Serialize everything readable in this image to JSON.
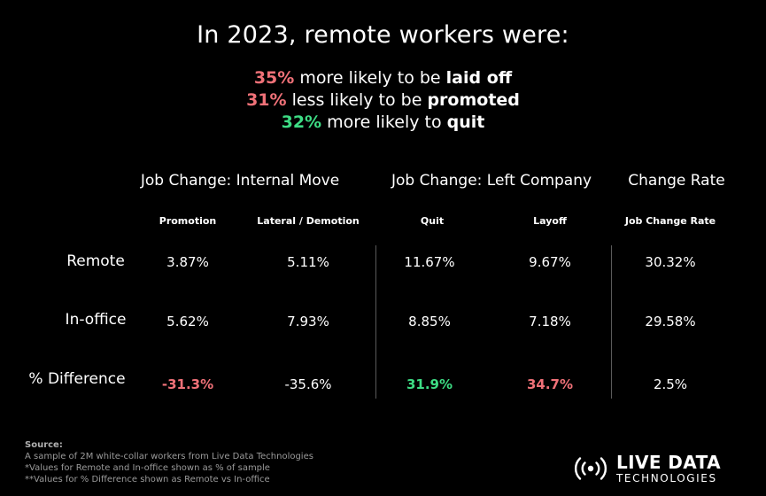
{
  "colors": {
    "background": "#000000",
    "text": "#ffffff",
    "negative_red": "#f07178",
    "positive_green": "#3ddc84",
    "divider": "#5a5a5a"
  },
  "headline": {
    "title": "In 2023, remote workers were:",
    "stats": [
      {
        "pct": "35%",
        "pre": " more likely to be ",
        "bold": "laid off",
        "pct_color": "#f07178"
      },
      {
        "pct": "31%",
        "pre": " less likely to be ",
        "bold": "promoted",
        "pct_color": "#f07178"
      },
      {
        "pct": "32%",
        "pre": " more likely to ",
        "bold": "quit",
        "pct_color": "#3ddc84"
      }
    ]
  },
  "chart_data": {
    "type": "table",
    "groups": [
      {
        "label": "Job Change: Internal Move",
        "columns": [
          "Promotion",
          "Lateral / Demotion"
        ]
      },
      {
        "label": "Job Change: Left Company",
        "columns": [
          "Quit",
          "Layoff"
        ]
      },
      {
        "label": "Change Rate",
        "columns": [
          "Job Change Rate"
        ]
      }
    ],
    "columns": [
      "Promotion",
      "Lateral / Demotion",
      "Quit",
      "Layoff",
      "Job Change Rate"
    ],
    "rows": [
      {
        "label": "Remote",
        "values": [
          "3.87%",
          "5.11%",
          "11.67%",
          "9.67%",
          "30.32%"
        ]
      },
      {
        "label": "In-office",
        "values": [
          "5.62%",
          "7.93%",
          "8.85%",
          "7.18%",
          "29.58%"
        ]
      },
      {
        "label": "% Difference",
        "values": [
          "-31.3%",
          "-35.6%",
          "31.9%",
          "34.7%",
          "2.5%"
        ]
      }
    ],
    "numeric": {
      "Remote": [
        3.87,
        5.11,
        11.67,
        9.67,
        30.32
      ],
      "In-office": [
        5.62,
        7.93,
        8.85,
        7.18,
        29.58
      ],
      "% Difference": [
        -31.3,
        -35.6,
        31.9,
        34.7,
        2.5
      ]
    },
    "highlights": {
      "% Difference": [
        "#f07178",
        null,
        "#3ddc84",
        "#f07178",
        null
      ]
    }
  },
  "source": {
    "heading": "Source:",
    "lines": [
      "A sample of 2M white-collar workers from Live Data Technologies",
      "*Values for Remote and In-office shown as % of sample",
      "**Values for % Difference shown as Remote vs In-office"
    ]
  },
  "logo": {
    "line1": "LIVE DATA",
    "line2": "TECHNOLOGIES",
    "icon": "broadcast-icon"
  }
}
